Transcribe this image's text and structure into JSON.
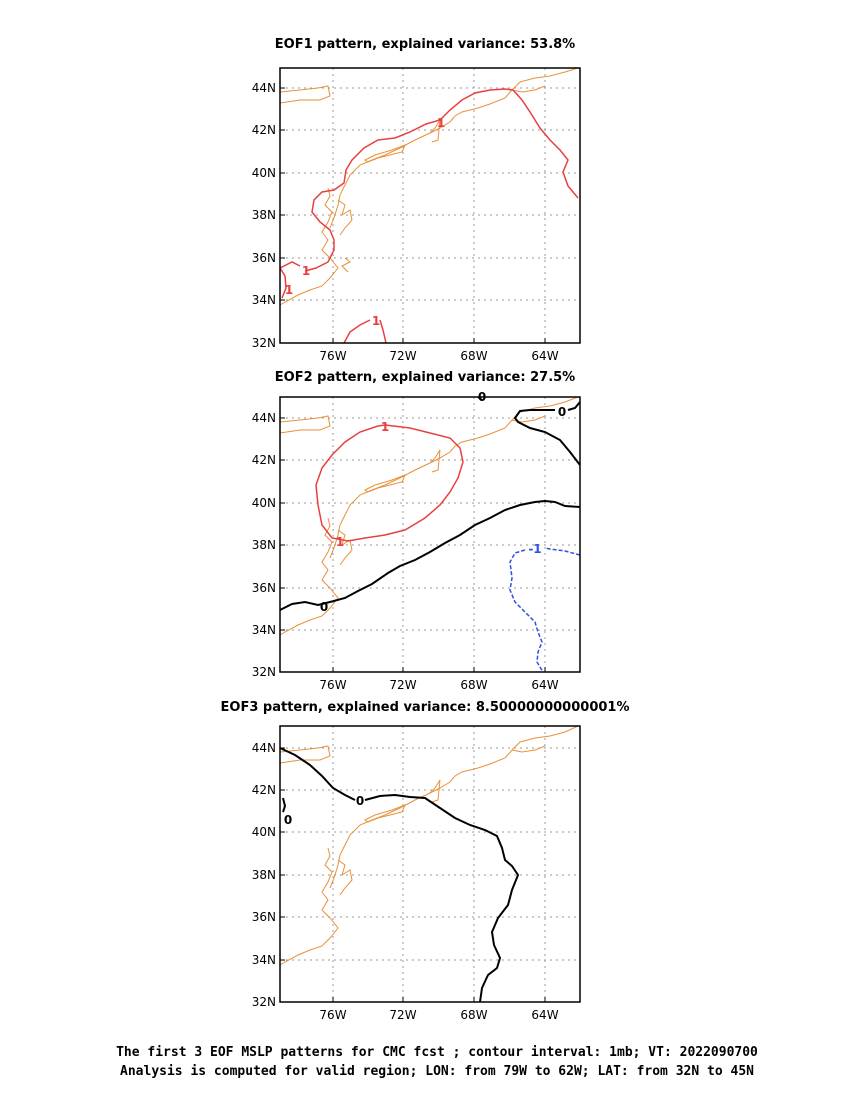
{
  "panels": [
    {
      "title": "EOF1 pattern, explained variance: 53.8%",
      "x_ticks": [
        "76W",
        "72W",
        "68W",
        "64W"
      ],
      "y_ticks": [
        "44N",
        "42N",
        "40N",
        "38N",
        "36N",
        "34N",
        "32N"
      ],
      "contour_labels": [
        "1",
        "1",
        "1",
        "1"
      ]
    },
    {
      "title": "EOF2 pattern, explained variance: 27.5%",
      "x_ticks": [
        "76W",
        "72W",
        "68W",
        "64W"
      ],
      "y_ticks": [
        "44N",
        "42N",
        "40N",
        "38N",
        "36N",
        "34N",
        "32N"
      ],
      "contour_labels": [
        "1",
        "1",
        "0",
        "0",
        "0",
        "-1"
      ]
    },
    {
      "title": "EOF3 pattern, explained variance: 8.50000000000001%",
      "x_ticks": [
        "76W",
        "72W",
        "68W",
        "64W"
      ],
      "y_ticks": [
        "44N",
        "42N",
        "40N",
        "38N",
        "36N",
        "34N",
        "32N"
      ],
      "contour_labels": [
        "0",
        "0"
      ]
    }
  ],
  "caption": {
    "line1": "The first 3 EOF MSLP patterns for CMC fcst ; contour interval: 1mb; VT: 2022090700",
    "line2": "Analysis is computed for valid region; LON: from 79W to 62W; LAT: from 32N to 45N"
  },
  "map_domain": {
    "lon_range": [
      "79W",
      "62W"
    ],
    "lat_range": [
      "32N",
      "45N"
    ]
  },
  "colors": {
    "coastline": "#e8913a",
    "positive_contour": "#e84040",
    "zero_contour": "#000000",
    "negative_contour": "#3050e0",
    "grid": "#999999"
  }
}
